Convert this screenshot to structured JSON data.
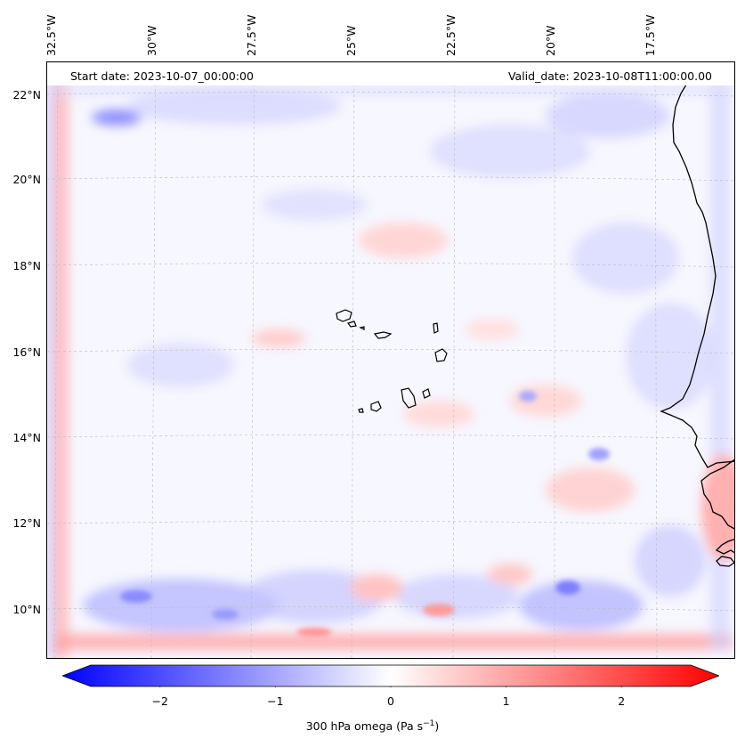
{
  "header": {
    "start_date": "Start date: 2023-10-07_00:00:00",
    "valid_date": "Valid_date: 2023-10-08T11:00:00.00"
  },
  "axes": {
    "lon_labels": [
      "32.5°W",
      "30°W",
      "27.5°W",
      "25°W",
      "22.5°W",
      "20°W",
      "17.5°W"
    ],
    "lat_labels": [
      "22°N",
      "20°N",
      "18°N",
      "16°N",
      "14°N",
      "12°N",
      "10°N"
    ],
    "gridlines": "dashed"
  },
  "colorbar": {
    "ticks": [
      "−2",
      "−1",
      "0",
      "1",
      "2"
    ],
    "tick_values": [
      -2,
      -1,
      0,
      1,
      2
    ],
    "range": [
      -2.6,
      2.6
    ],
    "label_prefix": "300 hPa omega (Pa s",
    "label_sup": "−1",
    "label_suffix": ")",
    "cmap": "bwr",
    "extend": "both",
    "colors": {
      "low": "#0000ff",
      "mid": "#ffffff",
      "high": "#ff0000"
    }
  },
  "map": {
    "variable": "300 hPa omega",
    "background": "#f7f7ff",
    "coastline_color": "#000000"
  }
}
